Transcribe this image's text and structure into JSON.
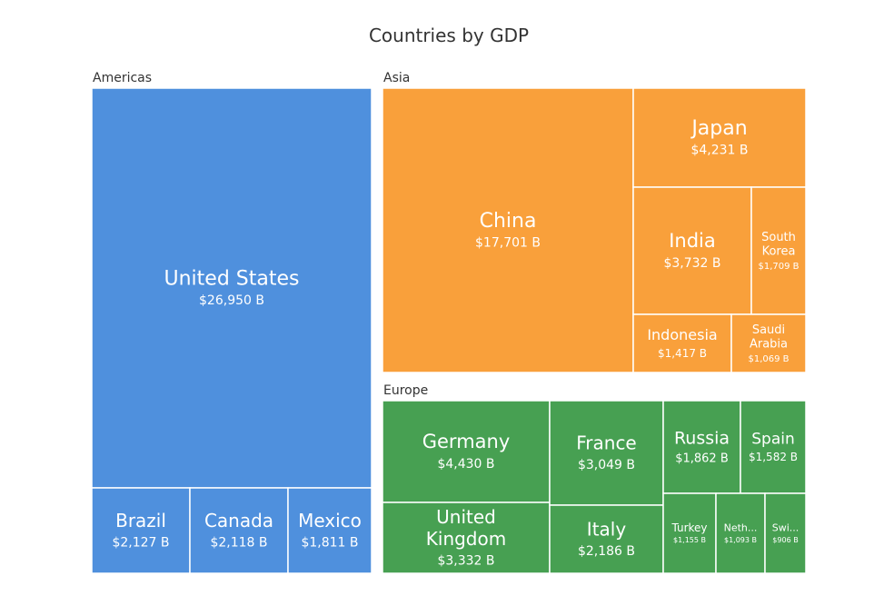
{
  "chart_data": {
    "type": "treemap",
    "title": "Countries by GDP",
    "groups": [
      {
        "name": "Americas",
        "color": "#4f90dd",
        "items": [
          {
            "name": "United States",
            "label": "United States",
            "value_label": "$26,950 B",
            "value": 26950
          },
          {
            "name": "Brazil",
            "label": "Brazil",
            "value_label": "$2,127 B",
            "value": 2127
          },
          {
            "name": "Canada",
            "label": "Canada",
            "value_label": "$2,118 B",
            "value": 2118
          },
          {
            "name": "Mexico",
            "label": "Mexico",
            "value_label": "$1,811 B",
            "value": 1811
          }
        ]
      },
      {
        "name": "Asia",
        "color": "#f9a03b",
        "items": [
          {
            "name": "China",
            "label": "China",
            "value_label": "$17,701 B",
            "value": 17701
          },
          {
            "name": "Japan",
            "label": "Japan",
            "value_label": "$4,231 B",
            "value": 4231
          },
          {
            "name": "India",
            "label": "India",
            "value_label": "$3,732 B",
            "value": 3732
          },
          {
            "name": "South Korea",
            "label": "South Korea",
            "value_label": "$1,709 B",
            "value": 1709
          },
          {
            "name": "Indonesia",
            "label": "Indonesia",
            "value_label": "$1,417 B",
            "value": 1417
          },
          {
            "name": "Saudi Arabia",
            "label": "Saudi Arabia",
            "value_label": "$1,069 B",
            "value": 1069
          }
        ]
      },
      {
        "name": "Europe",
        "color": "#47a052",
        "items": [
          {
            "name": "Germany",
            "label": "Germany",
            "value_label": "$4,430 B",
            "value": 4430
          },
          {
            "name": "United Kingdom",
            "label": "United Kingdom",
            "value_label": "$3,332 B",
            "value": 3332
          },
          {
            "name": "France",
            "label": "France",
            "value_label": "$3,049 B",
            "value": 3049
          },
          {
            "name": "Italy",
            "label": "Italy",
            "value_label": "$2,186 B",
            "value": 2186
          },
          {
            "name": "Russia",
            "label": "Russia",
            "value_label": "$1,862 B",
            "value": 1862
          },
          {
            "name": "Spain",
            "label": "Spain",
            "value_label": "$1,582 B",
            "value": 1582
          },
          {
            "name": "Turkey",
            "label": "Turkey",
            "value_label": "$1,155 B",
            "value": 1155
          },
          {
            "name": "Netherlands",
            "label": "Neth...",
            "value_label": "$1,093 B",
            "value": 1093
          },
          {
            "name": "Switzerland",
            "label": "Swi...",
            "value_label": "$906 B",
            "value": 906
          }
        ]
      }
    ]
  }
}
